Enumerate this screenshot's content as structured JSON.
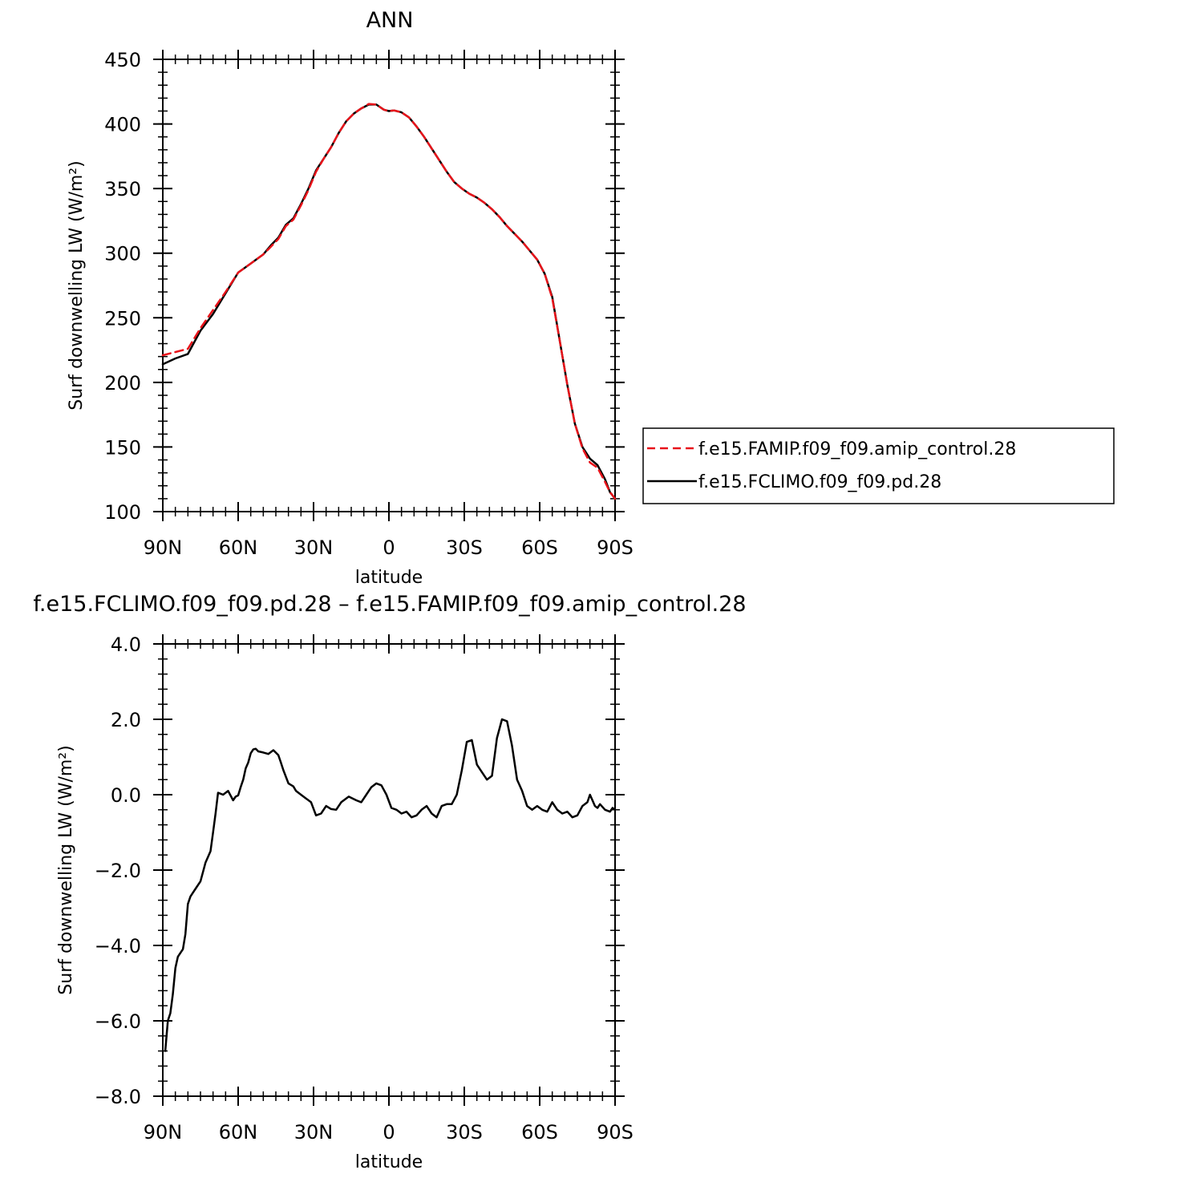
{
  "chart_data": [
    {
      "type": "line",
      "title": "ANN",
      "xlabel": "latitude",
      "ylabel": "Surf downwelling LW (W/m²)",
      "xlim": [
        90,
        -90
      ],
      "ylim": [
        100,
        450
      ],
      "xticks": [
        90,
        60,
        30,
        0,
        -30,
        -60,
        -90
      ],
      "xtick_labels": [
        "90N",
        "60N",
        "30N",
        "0",
        "30S",
        "60S",
        "90S"
      ],
      "yticks": [
        100,
        150,
        200,
        250,
        300,
        350,
        400,
        450
      ],
      "ytick_labels": [
        "100",
        "150",
        "200",
        "250",
        "300",
        "350",
        "400",
        "450"
      ],
      "legend": {
        "position": "right",
        "entries": [
          {
            "label": "f.e15.FAMIP.f09_f09.amip_control.28",
            "color": "#e8131a",
            "style": "dashed"
          },
          {
            "label": "f.e15.FCLIMO.f09_f09.pd.28",
            "color": "#000000",
            "style": "solid"
          }
        ]
      },
      "series": [
        {
          "name": "f.e15.FAMIP.f09_f09.amip_control.28",
          "color": "#e8131a",
          "style": "dashed",
          "x": [
            90,
            85,
            80,
            75,
            70,
            65,
            60,
            55,
            50,
            47,
            44,
            41,
            38,
            35,
            32,
            29,
            26,
            23,
            20,
            17,
            14,
            11,
            8,
            5,
            2,
            0,
            -2,
            -5,
            -8,
            -11,
            -14,
            -17,
            -20,
            -23,
            -26,
            -29,
            -32,
            -35,
            -38,
            -41,
            -44,
            -47,
            -50,
            -53,
            -56,
            -59,
            -62,
            -65,
            -68,
            -71,
            -74,
            -77,
            -80,
            -83,
            -86,
            -88,
            -90
          ],
          "y": [
            221,
            223.5,
            226,
            242,
            256,
            270,
            285,
            292,
            299,
            305,
            311,
            321,
            326,
            337,
            349,
            363,
            373,
            382,
            393,
            402,
            408,
            412,
            415.5,
            415,
            411,
            410,
            410.5,
            409,
            405,
            398,
            390,
            381,
            372,
            363,
            355,
            350,
            346,
            343,
            339,
            334,
            328,
            321,
            315,
            309,
            302,
            295,
            284,
            265,
            232,
            198,
            168,
            149,
            138,
            134,
            123,
            115,
            110
          ]
        },
        {
          "name": "f.e15.FCLIMO.f09_f09.pd.28",
          "color": "#000000",
          "style": "solid",
          "x": [
            90,
            85,
            80,
            75,
            70,
            65,
            60,
            55,
            50,
            47,
            44,
            41,
            38,
            35,
            32,
            29,
            26,
            23,
            20,
            17,
            14,
            11,
            8,
            5,
            2,
            0,
            -2,
            -5,
            -8,
            -11,
            -14,
            -17,
            -20,
            -23,
            -26,
            -29,
            -32,
            -35,
            -38,
            -41,
            -44,
            -47,
            -50,
            -53,
            -56,
            -59,
            -62,
            -65,
            -68,
            -71,
            -74,
            -77,
            -80,
            -83,
            -86,
            -88,
            -90
          ],
          "y": [
            214,
            218.5,
            222,
            240,
            253,
            269,
            285,
            292,
            299,
            306,
            312,
            322,
            327,
            338,
            350,
            364,
            373,
            382,
            393,
            402,
            408,
            412,
            415,
            415,
            411,
            410,
            410.5,
            409,
            405,
            398,
            390,
            381,
            372,
            363,
            355,
            350,
            346,
            343,
            339,
            334,
            328,
            321,
            315,
            309,
            302,
            295,
            284,
            266,
            232,
            198,
            168,
            150,
            141,
            136,
            125,
            115,
            110
          ]
        }
      ]
    },
    {
      "type": "line",
      "title": "f.e15.FCLIMO.f09_f09.pd.28 – f.e15.FAMIP.f09_f09.amip_control.28",
      "xlabel": "latitude",
      "ylabel": "Surf downwelling LW (W/m²)",
      "xlim": [
        90,
        -90
      ],
      "ylim": [
        -8,
        4
      ],
      "xticks": [
        90,
        60,
        30,
        0,
        -30,
        -60,
        -90
      ],
      "xtick_labels": [
        "90N",
        "60N",
        "30N",
        "0",
        "30S",
        "60S",
        "90S"
      ],
      "yticks": [
        -8,
        -6,
        -4,
        -2,
        0,
        2,
        4
      ],
      "ytick_labels": [
        "−8.0",
        "−6.0",
        "−4.0",
        "−2.0",
        "0.0",
        "2.0",
        "4.0"
      ],
      "series": [
        {
          "color": "#000000",
          "style": "solid",
          "x": [
            89,
            88,
            87,
            86,
            85,
            84,
            83,
            82,
            81,
            80,
            79,
            78,
            77,
            75,
            73,
            71,
            70,
            69,
            68,
            66,
            64,
            62,
            61,
            60,
            59,
            58,
            57,
            56,
            55,
            54,
            53,
            52,
            50,
            48,
            46,
            44,
            43,
            42,
            40,
            38,
            37,
            35,
            33,
            31,
            29,
            27,
            25,
            23,
            21,
            19,
            16,
            13,
            11,
            9,
            7,
            5,
            3,
            1,
            -1,
            -3,
            -5,
            -7,
            -9,
            -11,
            -13,
            -15,
            -17,
            -19,
            -21,
            -23,
            -25,
            -27,
            -29,
            -31,
            -33,
            -35,
            -37,
            -39,
            -41,
            -43,
            -45,
            -47,
            -49,
            -51,
            -53,
            -55,
            -57,
            -59,
            -61,
            -63,
            -65,
            -67,
            -69,
            -71,
            -73,
            -75,
            -77,
            -78,
            -79,
            -80,
            -81,
            -82,
            -83,
            -84,
            -86,
            -88,
            -89,
            -90
          ],
          "y": [
            -6.8,
            -6.0,
            -5.8,
            -5.3,
            -4.6,
            -4.3,
            -4.2,
            -4.1,
            -3.7,
            -2.9,
            -2.7,
            -2.6,
            -2.5,
            -2.3,
            -1.8,
            -1.5,
            -1.0,
            -0.5,
            0.05,
            0.0,
            0.1,
            -0.15,
            -0.05,
            -0.02,
            0.2,
            0.4,
            0.7,
            0.85,
            1.1,
            1.2,
            1.22,
            1.15,
            1.12,
            1.08,
            1.18,
            1.05,
            0.85,
            0.65,
            0.3,
            0.22,
            0.1,
            0.0,
            -0.1,
            -0.2,
            -0.55,
            -0.5,
            -0.3,
            -0.38,
            -0.4,
            -0.2,
            -0.05,
            -0.15,
            -0.2,
            0.0,
            0.2,
            0.3,
            0.25,
            0.0,
            -0.35,
            -0.4,
            -0.5,
            -0.45,
            -0.6,
            -0.55,
            -0.4,
            -0.3,
            -0.5,
            -0.6,
            -0.3,
            -0.25,
            -0.25,
            0.0,
            0.65,
            1.4,
            1.45,
            0.8,
            0.6,
            0.4,
            0.5,
            1.5,
            2.0,
            1.95,
            1.3,
            0.4,
            0.1,
            -0.3,
            -0.4,
            -0.3,
            -0.4,
            -0.45,
            -0.2,
            -0.4,
            -0.5,
            -0.45,
            -0.6,
            -0.55,
            -0.3,
            -0.25,
            -0.2,
            0.0,
            -0.15,
            -0.3,
            -0.35,
            -0.25,
            -0.4,
            -0.45,
            -0.35,
            -0.4
          ]
        }
      ]
    }
  ]
}
